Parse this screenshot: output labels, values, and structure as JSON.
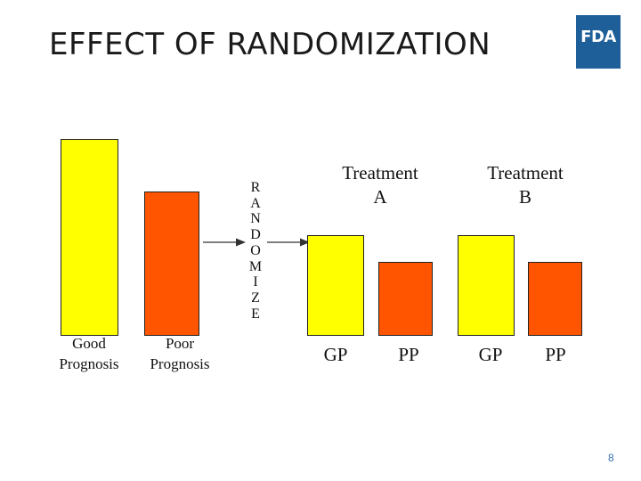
{
  "title": "EFFECT OF RANDOMIZATION",
  "logo": {
    "text": "FDA",
    "color": "#1f5f99"
  },
  "colors": {
    "good_prognosis": "#ffff00",
    "poor_prognosis": "#ff5500"
  },
  "pool": [
    {
      "label_line1": "Good",
      "label_line2": "Prognosis"
    },
    {
      "label_line1": "Poor",
      "label_line2": "Prognosis"
    }
  ],
  "randomize_letters": [
    "R",
    "A",
    "N",
    "D",
    "O",
    "M",
    "I",
    "Z",
    "E"
  ],
  "groups": [
    {
      "title_line1": "Treatment",
      "title_line2": "A",
      "bar_labels": [
        "GP",
        "PP"
      ]
    },
    {
      "title_line1": "Treatment",
      "title_line2": "B",
      "bar_labels": [
        "GP",
        "PP"
      ]
    }
  ],
  "page_number": "8"
}
